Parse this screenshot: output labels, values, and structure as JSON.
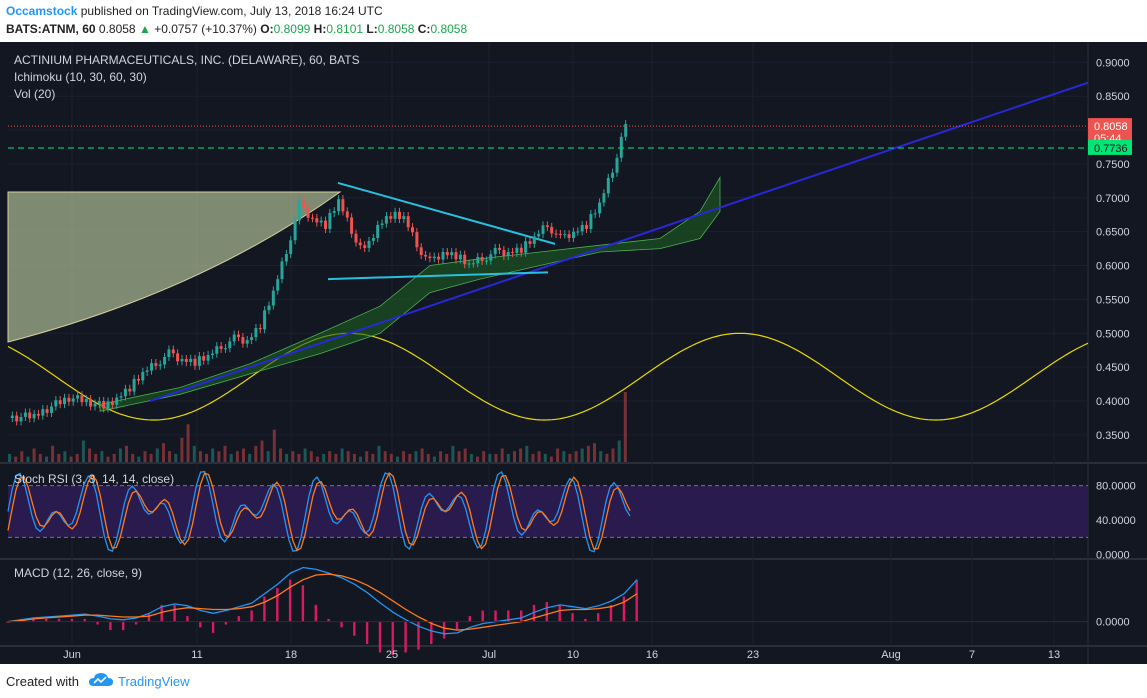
{
  "header": {
    "author": "Occamstock",
    "published": "published on TradingView.com, July 13, 2018 16:24 UTC",
    "symbol": "BATS:ATNM, 60",
    "last": "0.8058",
    "change": "+0.0757 (+10.37%)",
    "o_label": "O:",
    "o_val": "0.8099",
    "h_label": "H:",
    "h_val": "0.8101",
    "l_label": "L:",
    "l_val": "0.8058",
    "c_label": "C:",
    "c_val": "0.8058"
  },
  "footer": {
    "created_with": "Created with",
    "brand": "TradingView"
  },
  "colors": {
    "background": "#131722",
    "bull": "#26a69a",
    "bear": "#ef5350",
    "trendline": "#2828d8",
    "triangle": "#29c0e0",
    "sine": "#e8d800",
    "stoch_band": "#2a1b4f",
    "macd": "#2196f3",
    "signal": "#ff7a1a",
    "hist": "#d81b60",
    "cloud_bull": "#1b5e20",
    "cloud_bear": "#5d1a1a",
    "arc_fill": "#a3b28c"
  },
  "chart_data": [
    {
      "type": "candlestick",
      "title": "ACTINIUM PHARMACEUTICALS, INC. (DELAWARE), 60, BATS",
      "indicators": [
        "Ichimoku (10, 30, 60, 30)",
        "Vol (20)"
      ],
      "x_ticks": [
        "Jun",
        "11",
        "18",
        "25",
        "Jul",
        "10",
        "16",
        "23",
        "Aug",
        "7",
        "13"
      ],
      "y_ticks": [
        "0.9000",
        "0.8500",
        "0.8000",
        "0.7500",
        "0.7000",
        "0.6500",
        "0.6000",
        "0.5500",
        "0.5000",
        "0.4500",
        "0.4000",
        "0.3500"
      ],
      "ylim": [
        0.31,
        0.93
      ],
      "price_labels": [
        {
          "text": "0.8058",
          "value": 0.8058,
          "color": "#ef5350"
        },
        {
          "text": "05:44",
          "value": 0.788,
          "color": "#ef5350"
        },
        {
          "text": "0.7736",
          "value": 0.7736,
          "color": "#00e676"
        }
      ],
      "close_path": [
        {
          "x": 0,
          "y": 0.375
        },
        {
          "x": 6,
          "y": 0.378
        },
        {
          "x": 10,
          "y": 0.392
        },
        {
          "x": 14,
          "y": 0.405
        },
        {
          "x": 18,
          "y": 0.4
        },
        {
          "x": 22,
          "y": 0.392
        },
        {
          "x": 25,
          "y": 0.405
        },
        {
          "x": 28,
          "y": 0.42
        },
        {
          "x": 31,
          "y": 0.44
        },
        {
          "x": 34,
          "y": 0.455
        },
        {
          "x": 37,
          "y": 0.47
        },
        {
          "x": 40,
          "y": 0.462
        },
        {
          "x": 43,
          "y": 0.458
        },
        {
          "x": 46,
          "y": 0.465
        },
        {
          "x": 49,
          "y": 0.48
        },
        {
          "x": 52,
          "y": 0.492
        },
        {
          "x": 55,
          "y": 0.49
        },
        {
          "x": 58,
          "y": 0.512
        },
        {
          "x": 61,
          "y": 0.56
        },
        {
          "x": 64,
          "y": 0.62
        },
        {
          "x": 67,
          "y": 0.69
        },
        {
          "x": 70,
          "y": 0.67
        },
        {
          "x": 73,
          "y": 0.66
        },
        {
          "x": 76,
          "y": 0.695
        },
        {
          "x": 79,
          "y": 0.65
        },
        {
          "x": 82,
          "y": 0.62
        },
        {
          "x": 85,
          "y": 0.66
        },
        {
          "x": 88,
          "y": 0.675
        },
        {
          "x": 91,
          "y": 0.67
        },
        {
          "x": 94,
          "y": 0.63
        },
        {
          "x": 97,
          "y": 0.605
        },
        {
          "x": 100,
          "y": 0.62
        },
        {
          "x": 103,
          "y": 0.615
        },
        {
          "x": 106,
          "y": 0.6
        },
        {
          "x": 109,
          "y": 0.61
        },
        {
          "x": 112,
          "y": 0.62
        },
        {
          "x": 115,
          "y": 0.62
        },
        {
          "x": 118,
          "y": 0.625
        },
        {
          "x": 121,
          "y": 0.64
        },
        {
          "x": 124,
          "y": 0.66
        },
        {
          "x": 127,
          "y": 0.64
        },
        {
          "x": 130,
          "y": 0.65
        },
        {
          "x": 133,
          "y": 0.66
        },
        {
          "x": 136,
          "y": 0.69
        },
        {
          "x": 139,
          "y": 0.74
        },
        {
          "x": 141,
          "y": 0.79
        },
        {
          "x": 142,
          "y": 0.8058
        }
      ],
      "volume": [
        3,
        2,
        4,
        2,
        5,
        3,
        2,
        6,
        3,
        4,
        2,
        3,
        8,
        5,
        3,
        4,
        2,
        3,
        5,
        6,
        3,
        2,
        4,
        3,
        5,
        7,
        4,
        3,
        9,
        14,
        6,
        4,
        3,
        5,
        4,
        6,
        3,
        4,
        5,
        3,
        6,
        8,
        4,
        12,
        5,
        3,
        4,
        3,
        5,
        4,
        2,
        3,
        4,
        3,
        5,
        4,
        3,
        2,
        4,
        3,
        6,
        4,
        3,
        2,
        4,
        3,
        4,
        5,
        3,
        2,
        4,
        3,
        6,
        4,
        5,
        3,
        2,
        4,
        3,
        3,
        5,
        3,
        4,
        5,
        6,
        3,
        4,
        3,
        2,
        5,
        4,
        3,
        4,
        5,
        6,
        7,
        4,
        3,
        5,
        8,
        26
      ]
    },
    {
      "type": "line",
      "title": "Stoch RSI (3, 3, 14, 14, close)",
      "y_ticks": [
        "80.0000",
        "40.0000",
        "0.0000"
      ],
      "ylim": [
        -4,
        104
      ]
    },
    {
      "type": "line",
      "title": "MACD (12, 26, close, 9)",
      "y_ticks": [
        "0.0000"
      ],
      "macd": [
        0.0,
        0.002,
        0.004,
        0.005,
        0.006,
        0.007,
        0.008,
        0.006,
        0.003,
        0.002,
        0.004,
        0.009,
        0.016,
        0.019,
        0.017,
        0.012,
        0.009,
        0.012,
        0.016,
        0.02,
        0.03,
        0.04,
        0.052,
        0.058,
        0.056,
        0.052,
        0.047,
        0.04,
        0.031,
        0.02,
        0.01,
        0.002,
        -0.005,
        -0.01,
        -0.013,
        -0.012,
        -0.006,
        -0.002,
        0.0,
        0.002,
        0.004,
        0.01,
        0.015,
        0.018,
        0.016,
        0.014,
        0.017,
        0.022,
        0.03,
        0.045
      ],
      "signal": [
        0.0,
        0.001,
        0.003,
        0.004,
        0.005,
        0.006,
        0.007,
        0.007,
        0.006,
        0.005,
        0.005,
        0.006,
        0.01,
        0.013,
        0.015,
        0.014,
        0.013,
        0.013,
        0.014,
        0.016,
        0.021,
        0.028,
        0.037,
        0.045,
        0.05,
        0.051,
        0.049,
        0.045,
        0.039,
        0.031,
        0.022,
        0.013,
        0.005,
        -0.002,
        -0.007,
        -0.009,
        -0.008,
        -0.006,
        -0.004,
        -0.002,
        0.0,
        0.004,
        0.008,
        0.012,
        0.013,
        0.013,
        0.014,
        0.016,
        0.021,
        0.03
      ]
    }
  ]
}
